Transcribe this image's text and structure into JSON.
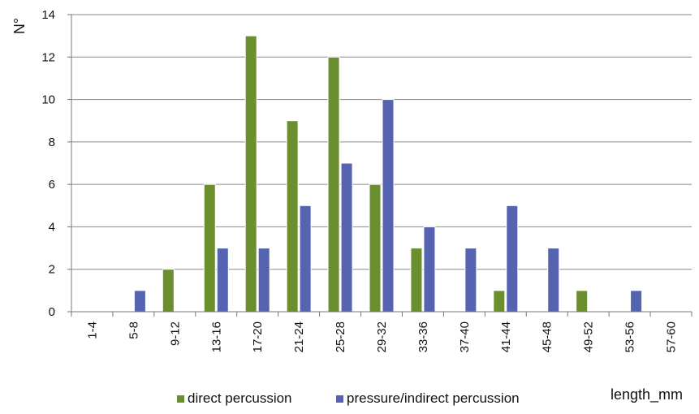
{
  "chart_data": {
    "type": "bar",
    "categories": [
      "1-4",
      "5-8",
      "9-12",
      "13-16",
      "17-20",
      "21-24",
      "25-28",
      "29-32",
      "33-36",
      "37-40",
      "41-44",
      "45-48",
      "49-52",
      "53-56",
      "57-60"
    ],
    "series": [
      {
        "name": "direct percussion",
        "color": "#6b8e2f",
        "values": [
          0,
          0,
          2,
          6,
          13,
          9,
          12,
          6,
          3,
          0,
          1,
          0,
          1,
          0,
          0
        ]
      },
      {
        "name": "pressure/indirect percussion",
        "color": "#5563b0",
        "values": [
          0,
          1,
          0,
          3,
          3,
          5,
          7,
          10,
          4,
          3,
          5,
          3,
          0,
          1,
          0
        ]
      }
    ],
    "ylabel": "N°",
    "xlabel": "length_mm",
    "ylim": [
      0,
      14
    ],
    "yticks": [
      0,
      2,
      4,
      6,
      8,
      10,
      12,
      14
    ],
    "grid": true,
    "legend_position": "bottom"
  }
}
